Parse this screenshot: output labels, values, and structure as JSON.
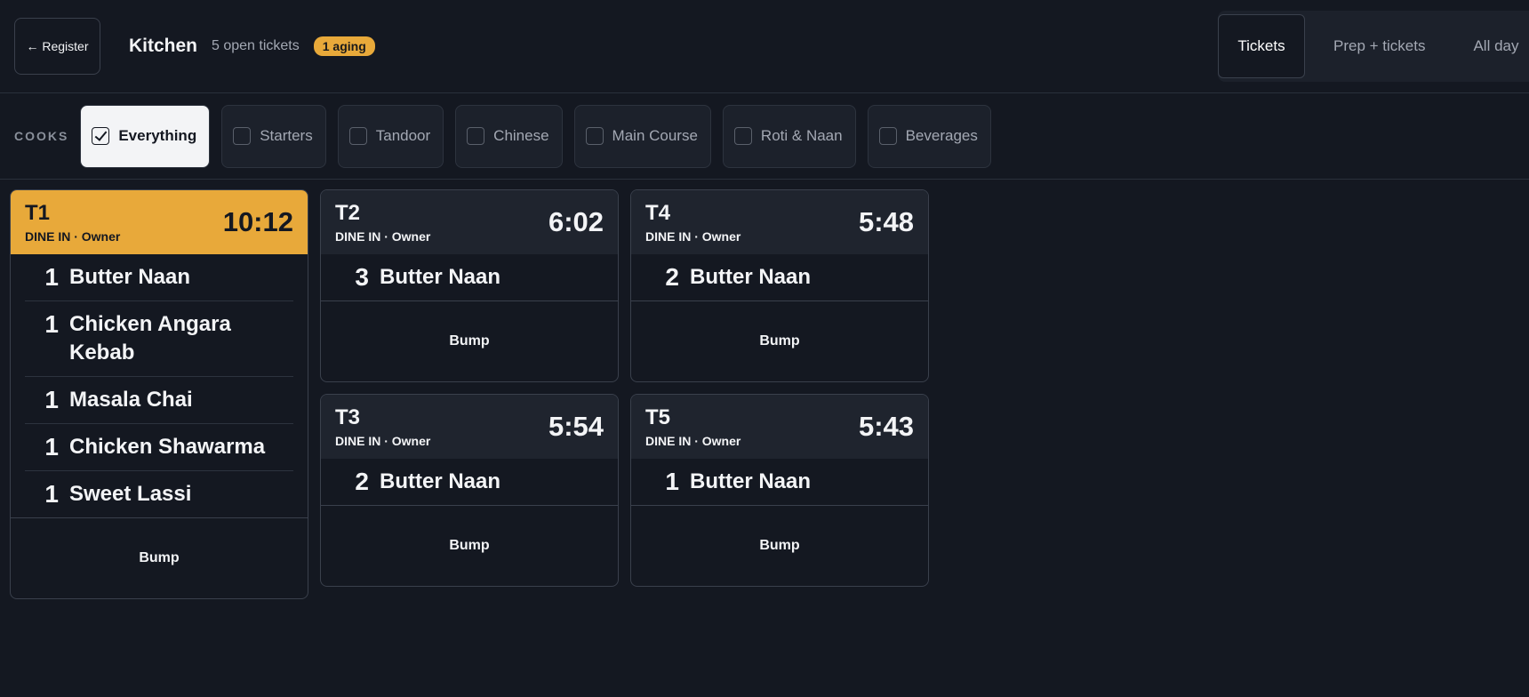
{
  "header": {
    "back_button": "← Register",
    "title": "Kitchen",
    "subtitle": "5 open tickets",
    "badge": "1 aging",
    "tabs": [
      "Tickets",
      "Prep + tickets",
      "All day"
    ],
    "active_tab": 0
  },
  "filters": {
    "label": "COOKS",
    "options": [
      {
        "label": "Everything",
        "checked": true
      },
      {
        "label": "Starters",
        "checked": false
      },
      {
        "label": "Tandoor",
        "checked": false
      },
      {
        "label": "Chinese",
        "checked": false
      },
      {
        "label": "Main Course",
        "checked": false
      },
      {
        "label": "Roti & Naan",
        "checked": false
      },
      {
        "label": "Beverages",
        "checked": false
      }
    ]
  },
  "tickets": [
    {
      "name": "T1",
      "meta": "DINE IN · Owner",
      "time": "10:12",
      "aging": true,
      "action": "Bump",
      "items": [
        {
          "qty": 1,
          "name": "Butter Naan"
        },
        {
          "qty": 1,
          "name": "Chicken Angara Kebab"
        },
        {
          "qty": 1,
          "name": "Masala Chai"
        },
        {
          "qty": 1,
          "name": "Chicken Shawarma"
        },
        {
          "qty": 1,
          "name": "Sweet Lassi"
        }
      ]
    },
    {
      "name": "T2",
      "meta": "DINE IN · Owner",
      "time": "6:02",
      "aging": false,
      "action": "Bump",
      "items": [
        {
          "qty": 3,
          "name": "Butter Naan"
        }
      ]
    },
    {
      "name": "T3",
      "meta": "DINE IN · Owner",
      "time": "5:54",
      "aging": false,
      "action": "Bump",
      "items": [
        {
          "qty": 2,
          "name": "Butter Naan"
        }
      ]
    },
    {
      "name": "T4",
      "meta": "DINE IN · Owner",
      "time": "5:48",
      "aging": false,
      "action": "Bump",
      "items": [
        {
          "qty": 2,
          "name": "Butter Naan"
        }
      ]
    },
    {
      "name": "T5",
      "meta": "DINE IN · Owner",
      "time": "5:43",
      "aging": false,
      "action": "Bump",
      "items": [
        {
          "qty": 1,
          "name": "Butter Naan"
        }
      ]
    }
  ]
}
